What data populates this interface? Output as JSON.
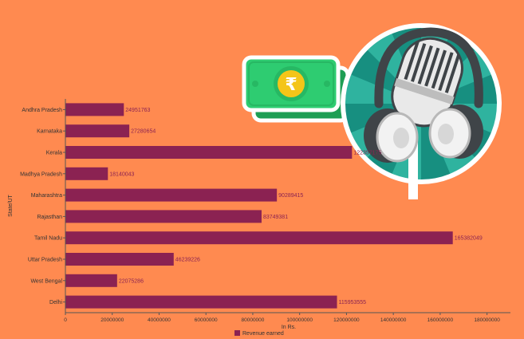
{
  "colors": {
    "background": "#FF8A50",
    "bar": "#8B2252",
    "bar_label": "#8B2252",
    "money_green": "#2ECC71",
    "money_dark": "#1E9E54",
    "disc_teal": "#178F80",
    "disc_teal_light": "#2FB39F"
  },
  "icons": {
    "money": "rupee-banknote-icon",
    "mic": "studio-microphone-headphones-icon",
    "currency_symbol": "₹"
  },
  "chart_data": {
    "type": "bar",
    "orientation": "horizontal",
    "categories": [
      "Andhra Pradesh",
      "Karnataka",
      "Kerala",
      "Madhya Pradesh",
      "Maharashtra",
      "Rajasthan",
      "Tamil Nadu",
      "Uttar Pradesh",
      "West Bengal",
      "Delhi"
    ],
    "series": [
      {
        "name": "Revenue earned",
        "values": [
          24951763,
          27280654,
          122357175,
          18140043,
          90289415,
          83749381,
          165382049,
          46239226,
          22075286,
          115953555
        ],
        "labels": [
          "24951763",
          "27280654",
          "122357175",
          "18140043",
          "90289415",
          "83749381",
          "165382049",
          "46239226",
          "22075286",
          "115953555"
        ]
      }
    ],
    "xlabel": "In Rs.",
    "ylabel": "State/UT",
    "xlim": [
      0,
      190000000
    ],
    "xticks": [
      0,
      20000000,
      40000000,
      60000000,
      80000000,
      100000000,
      120000000,
      140000000,
      160000000,
      180000000
    ],
    "xtick_labels": [
      "0",
      "20000000",
      "40000000",
      "60000000",
      "80000000",
      "100000000",
      "120000000",
      "140000000",
      "160000000",
      "180000000"
    ],
    "grid": false,
    "legend_position": "bottom-center"
  }
}
